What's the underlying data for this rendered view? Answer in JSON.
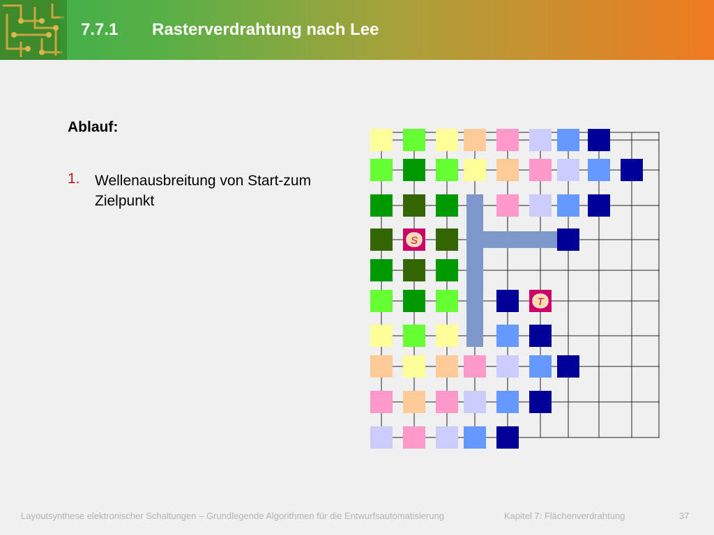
{
  "header": {
    "section_number": "7.7.1",
    "title": "Rasterverdrahtung nach Lee"
  },
  "content": {
    "heading": "Ablauf:",
    "list": [
      {
        "number": "1.",
        "text": "Wellenausbreitung von Start-zum Zielpunkt"
      }
    ]
  },
  "diagram": {
    "source_label": "S",
    "target_label": "T",
    "wave_colors": [
      "#66ff33",
      "#009900",
      "#336600",
      "#ffff99",
      "#ffcc99",
      "#ff99cc",
      "#ccccff",
      "#6699ff",
      "#000099"
    ],
    "highlight_color": "#cc0066",
    "path_color": "#7f98cc",
    "cells": [
      [
        0,
        0,
        "#ffff99"
      ],
      [
        0,
        1,
        "#66ff33"
      ],
      [
        0,
        2,
        "#ffff99"
      ],
      [
        0,
        3,
        "#ffcc99"
      ],
      [
        0,
        4,
        "#ff99cc"
      ],
      [
        0,
        5,
        "#ccccff"
      ],
      [
        0,
        6,
        "#6699ff"
      ],
      [
        0,
        7,
        "#000099"
      ],
      [
        1,
        0,
        "#66ff33"
      ],
      [
        1,
        1,
        "#009900"
      ],
      [
        1,
        2,
        "#66ff33"
      ],
      [
        1,
        3,
        "#ffff99"
      ],
      [
        1,
        4,
        "#ffcc99"
      ],
      [
        1,
        5,
        "#ff99cc"
      ],
      [
        1,
        6,
        "#ccccff"
      ],
      [
        1,
        7,
        "#6699ff"
      ],
      [
        1,
        8,
        "#000099"
      ],
      [
        2,
        0,
        "#009900"
      ],
      [
        2,
        1,
        "#336600"
      ],
      [
        2,
        2,
        "#009900"
      ],
      [
        2,
        4,
        "#ff99cc"
      ],
      [
        2,
        5,
        "#ccccff"
      ],
      [
        2,
        6,
        "#6699ff"
      ],
      [
        2,
        7,
        "#000099"
      ],
      [
        3,
        0,
        "#336600"
      ],
      [
        3,
        1,
        "#cc0066"
      ],
      [
        3,
        2,
        "#336600"
      ],
      [
        3,
        6,
        "#000099"
      ],
      [
        4,
        0,
        "#009900"
      ],
      [
        4,
        1,
        "#336600"
      ],
      [
        4,
        2,
        "#009900"
      ],
      [
        5,
        0,
        "#66ff33"
      ],
      [
        5,
        1,
        "#009900"
      ],
      [
        5,
        2,
        "#66ff33"
      ],
      [
        5,
        4,
        "#000099"
      ],
      [
        5,
        5,
        "#cc0066"
      ],
      [
        6,
        0,
        "#ffff99"
      ],
      [
        6,
        1,
        "#66ff33"
      ],
      [
        6,
        2,
        "#ffff99"
      ],
      [
        6,
        4,
        "#6699ff"
      ],
      [
        6,
        5,
        "#000099"
      ],
      [
        7,
        0,
        "#ffcc99"
      ],
      [
        7,
        1,
        "#ffff99"
      ],
      [
        7,
        2,
        "#ffcc99"
      ],
      [
        7,
        3,
        "#ff99cc"
      ],
      [
        7,
        4,
        "#ccccff"
      ],
      [
        7,
        5,
        "#6699ff"
      ],
      [
        7,
        6,
        "#000099"
      ],
      [
        8,
        0,
        "#ff99cc"
      ],
      [
        8,
        1,
        "#ffcc99"
      ],
      [
        8,
        2,
        "#ff99cc"
      ],
      [
        8,
        3,
        "#ccccff"
      ],
      [
        8,
        4,
        "#6699ff"
      ],
      [
        8,
        5,
        "#000099"
      ],
      [
        9,
        0,
        "#ccccff"
      ],
      [
        9,
        1,
        "#ff99cc"
      ],
      [
        9,
        2,
        "#ccccff"
      ],
      [
        9,
        3,
        "#6699ff"
      ],
      [
        9,
        4,
        "#000099"
      ]
    ],
    "source_cell": [
      3,
      1
    ],
    "target_cell": [
      5,
      5
    ]
  },
  "footer": {
    "course": "Layoutsynthese elektronischer Schaltungen – Grundlegende Algorithmen für die Entwurfsautomatisierung",
    "chapter": "Kapitel 7: Flächenverdrahtung",
    "page": "37"
  }
}
